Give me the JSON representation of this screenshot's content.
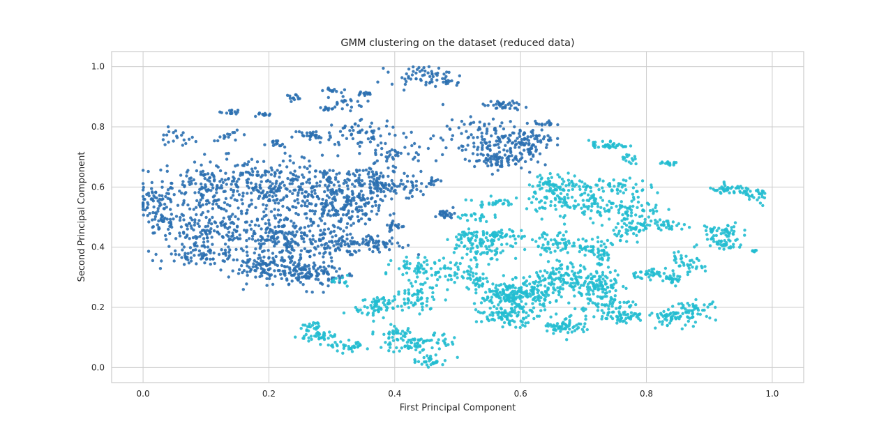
{
  "chart_data": {
    "type": "scatter",
    "title": "GMM clustering on the dataset (reduced data)",
    "xlabel": "First Principal Component",
    "ylabel": "Second Principal Component",
    "xlim": [
      -0.05,
      1.05
    ],
    "ylim": [
      -0.05,
      1.05
    ],
    "xticks": [
      "0.0",
      "0.2",
      "0.4",
      "0.6",
      "0.8",
      "1.0"
    ],
    "yticks": [
      "0.0",
      "0.2",
      "0.4",
      "0.6",
      "0.8",
      "1.0"
    ],
    "grid": true,
    "colors": {
      "cluster_0": "#2a6fb0",
      "cluster_1": "#22bdd0",
      "grid": "#cccccc",
      "frame": "#cccccc"
    },
    "clusters": [
      {
        "color": "#2a6fb0",
        "groups": [
          [
            0.02,
            0.55,
            0.02,
            0.04,
            60
          ],
          [
            0.05,
            0.76,
            0.02,
            0.02,
            20
          ],
          [
            0.03,
            0.48,
            0.015,
            0.02,
            25
          ],
          [
            0.1,
            0.6,
            0.05,
            0.06,
            160
          ],
          [
            0.1,
            0.45,
            0.05,
            0.05,
            150
          ],
          [
            0.1,
            0.37,
            0.04,
            0.02,
            60
          ],
          [
            0.14,
            0.85,
            0.01,
            0.005,
            14
          ],
          [
            0.14,
            0.77,
            0.02,
            0.01,
            14
          ],
          [
            0.19,
            0.84,
            0.01,
            0.005,
            12
          ],
          [
            0.24,
            0.9,
            0.01,
            0.005,
            12
          ],
          [
            0.3,
            0.92,
            0.008,
            0.005,
            12
          ],
          [
            0.35,
            0.91,
            0.01,
            0.005,
            12
          ],
          [
            0.32,
            0.88,
            0.02,
            0.015,
            22
          ],
          [
            0.29,
            0.86,
            0.01,
            0.005,
            10
          ],
          [
            0.21,
            0.74,
            0.01,
            0.01,
            14
          ],
          [
            0.27,
            0.77,
            0.02,
            0.015,
            30
          ],
          [
            0.35,
            0.78,
            0.04,
            0.03,
            50
          ],
          [
            0.2,
            0.6,
            0.05,
            0.06,
            220
          ],
          [
            0.22,
            0.43,
            0.05,
            0.05,
            220
          ],
          [
            0.2,
            0.33,
            0.04,
            0.03,
            110
          ],
          [
            0.26,
            0.31,
            0.03,
            0.03,
            90
          ],
          [
            0.3,
            0.58,
            0.04,
            0.06,
            170
          ],
          [
            0.33,
            0.52,
            0.03,
            0.04,
            90
          ],
          [
            0.3,
            0.42,
            0.03,
            0.03,
            70
          ],
          [
            0.3,
            0.31,
            0.02,
            0.02,
            25
          ],
          [
            0.36,
            0.63,
            0.025,
            0.03,
            50
          ],
          [
            0.38,
            0.6,
            0.02,
            0.015,
            35
          ],
          [
            0.37,
            0.41,
            0.03,
            0.02,
            70
          ],
          [
            0.4,
            0.47,
            0.01,
            0.01,
            20
          ],
          [
            0.4,
            0.72,
            0.03,
            0.05,
            55
          ],
          [
            0.42,
            0.6,
            0.02,
            0.03,
            30
          ],
          [
            0.46,
            0.62,
            0.008,
            0.01,
            14
          ],
          [
            0.44,
            0.97,
            0.03,
            0.02,
            55
          ],
          [
            0.49,
            0.95,
            0.01,
            0.01,
            12
          ],
          [
            0.48,
            0.51,
            0.01,
            0.01,
            25
          ],
          [
            0.54,
            0.76,
            0.04,
            0.04,
            100
          ],
          [
            0.56,
            0.69,
            0.03,
            0.02,
            70
          ],
          [
            0.6,
            0.75,
            0.03,
            0.04,
            80
          ],
          [
            0.57,
            0.87,
            0.02,
            0.01,
            35
          ],
          [
            0.64,
            0.81,
            0.01,
            0.005,
            14
          ],
          [
            0.63,
            0.76,
            0.015,
            0.015,
            16
          ]
        ]
      },
      {
        "color": "#22bdd0",
        "groups": [
          [
            0.74,
            0.74,
            0.02,
            0.01,
            40
          ],
          [
            0.77,
            0.69,
            0.01,
            0.01,
            14
          ],
          [
            0.84,
            0.68,
            0.01,
            0.005,
            14
          ],
          [
            0.66,
            0.61,
            0.03,
            0.02,
            70
          ],
          [
            0.74,
            0.6,
            0.04,
            0.02,
            60
          ],
          [
            0.56,
            0.55,
            0.02,
            0.01,
            25
          ],
          [
            0.52,
            0.5,
            0.02,
            0.01,
            20
          ],
          [
            0.67,
            0.55,
            0.04,
            0.03,
            80
          ],
          [
            0.76,
            0.52,
            0.04,
            0.03,
            90
          ],
          [
            0.78,
            0.46,
            0.02,
            0.02,
            40
          ],
          [
            0.83,
            0.47,
            0.03,
            0.01,
            40
          ],
          [
            0.93,
            0.59,
            0.02,
            0.01,
            40
          ],
          [
            0.97,
            0.57,
            0.02,
            0.02,
            30
          ],
          [
            0.92,
            0.45,
            0.02,
            0.02,
            50
          ],
          [
            0.92,
            0.41,
            0.02,
            0.01,
            30
          ],
          [
            0.97,
            0.39,
            0.005,
            0.005,
            8
          ],
          [
            0.53,
            0.42,
            0.03,
            0.02,
            60
          ],
          [
            0.57,
            0.44,
            0.02,
            0.01,
            40
          ],
          [
            0.55,
            0.38,
            0.02,
            0.02,
            30
          ],
          [
            0.65,
            0.41,
            0.03,
            0.03,
            60
          ],
          [
            0.71,
            0.4,
            0.02,
            0.02,
            40
          ],
          [
            0.73,
            0.37,
            0.01,
            0.02,
            25
          ],
          [
            0.49,
            0.32,
            0.03,
            0.03,
            60
          ],
          [
            0.43,
            0.33,
            0.02,
            0.02,
            40
          ],
          [
            0.53,
            0.28,
            0.01,
            0.03,
            30
          ],
          [
            0.57,
            0.24,
            0.02,
            0.03,
            80
          ],
          [
            0.6,
            0.24,
            0.02,
            0.03,
            100
          ],
          [
            0.58,
            0.17,
            0.03,
            0.02,
            90
          ],
          [
            0.64,
            0.26,
            0.02,
            0.04,
            70
          ],
          [
            0.68,
            0.3,
            0.03,
            0.03,
            100
          ],
          [
            0.67,
            0.14,
            0.02,
            0.02,
            60
          ],
          [
            0.73,
            0.27,
            0.02,
            0.03,
            80
          ],
          [
            0.73,
            0.2,
            0.03,
            0.03,
            70
          ],
          [
            0.77,
            0.17,
            0.02,
            0.01,
            35
          ],
          [
            0.8,
            0.31,
            0.02,
            0.01,
            35
          ],
          [
            0.84,
            0.29,
            0.01,
            0.01,
            25
          ],
          [
            0.86,
            0.34,
            0.02,
            0.02,
            40
          ],
          [
            0.84,
            0.17,
            0.02,
            0.02,
            60
          ],
          [
            0.88,
            0.19,
            0.02,
            0.02,
            40
          ],
          [
            0.43,
            0.22,
            0.03,
            0.02,
            40
          ],
          [
            0.38,
            0.21,
            0.02,
            0.02,
            40
          ],
          [
            0.36,
            0.19,
            0.02,
            0.01,
            20
          ],
          [
            0.4,
            0.12,
            0.02,
            0.02,
            35
          ],
          [
            0.43,
            0.08,
            0.03,
            0.02,
            60
          ],
          [
            0.46,
            0.02,
            0.02,
            0.01,
            30
          ],
          [
            0.48,
            0.09,
            0.01,
            0.02,
            14
          ],
          [
            0.27,
            0.13,
            0.015,
            0.015,
            25
          ],
          [
            0.28,
            0.1,
            0.02,
            0.01,
            30
          ],
          [
            0.33,
            0.07,
            0.02,
            0.01,
            35
          ],
          [
            0.31,
            0.29,
            0.01,
            0.01,
            12
          ],
          [
            0.44,
            0.26,
            0.02,
            0.02,
            30
          ],
          [
            0.51,
            0.44,
            0.01,
            0.01,
            15
          ]
        ]
      }
    ]
  }
}
